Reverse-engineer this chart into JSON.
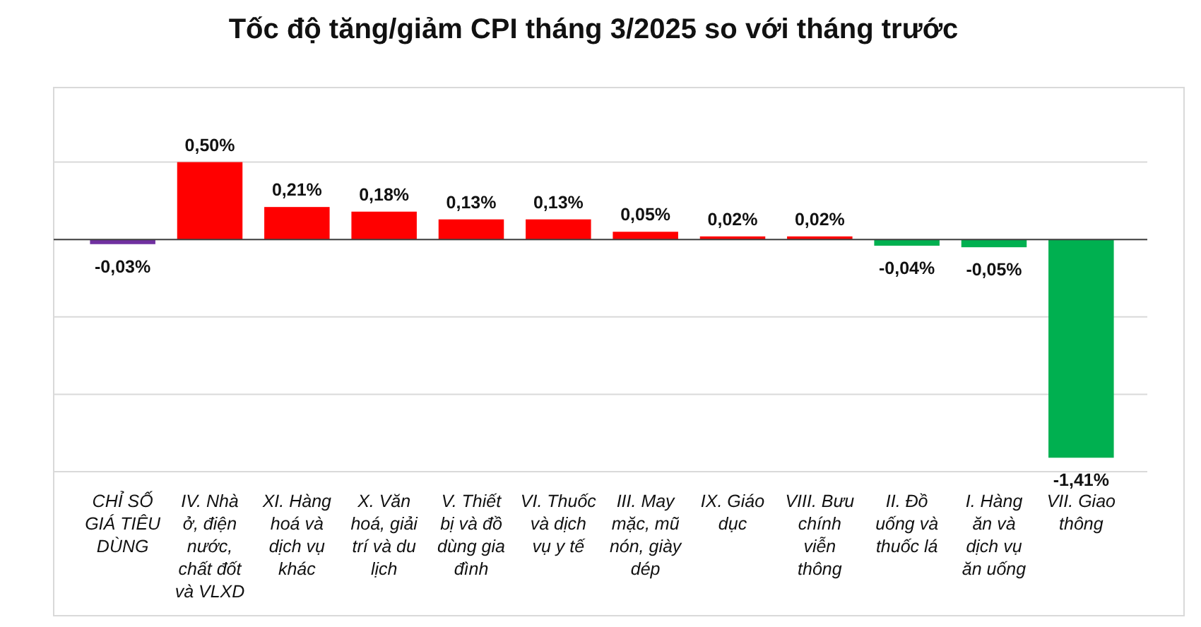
{
  "chart_data": {
    "type": "bar",
    "title": "Tốc độ tăng/giảm CPI tháng 3/2025 so với tháng trước",
    "categories": [
      "CHỈ SỐ GIÁ TIÊU DÙNG",
      "IV. Nhà ở, điện nước, chất đốt và VLXD",
      "XI. Hàng hoá và dịch vụ khác",
      "X. Văn hoá, giải trí và du lịch",
      "V. Thiết bị và đồ dùng gia đình",
      "VI. Thuốc và dịch vụ y tế",
      "III. May mặc, mũ nón, giày dép",
      "IX. Giáo dục",
      "VIII. Bưu chính viễn thông",
      "II. Đồ uống và thuốc lá",
      "I. Hàng ăn và dịch vụ ăn uống",
      "VII. Giao thông"
    ],
    "values": [
      -0.03,
      0.5,
      0.21,
      0.18,
      0.13,
      0.13,
      0.05,
      0.02,
      0.02,
      -0.04,
      -0.05,
      -1.41
    ],
    "colors": [
      "#7030a0",
      "#ff0000",
      "#ff0000",
      "#ff0000",
      "#ff0000",
      "#ff0000",
      "#ff0000",
      "#ff0000",
      "#ff0000",
      "#00b050",
      "#00b050",
      "#00b050"
    ],
    "value_labels": [
      "-0,03%",
      "0,50%",
      "0,21%",
      "0,18%",
      "0,13%",
      "0,13%",
      "0,05%",
      "0,02%",
      "0,02%",
      "-0,04%",
      "-0,05%",
      "-1,41%"
    ],
    "ylim": [
      -1.5,
      1
    ],
    "yticks": [
      {
        "value": -1.5,
        "label": null
      },
      {
        "value": -1,
        "label": null
      },
      {
        "value": -0.5,
        "label": null
      },
      {
        "value": 0,
        "label": null
      },
      {
        "value": 0.5,
        "label": null
      }
    ],
    "grid": "y",
    "tick_labels": "x"
  }
}
